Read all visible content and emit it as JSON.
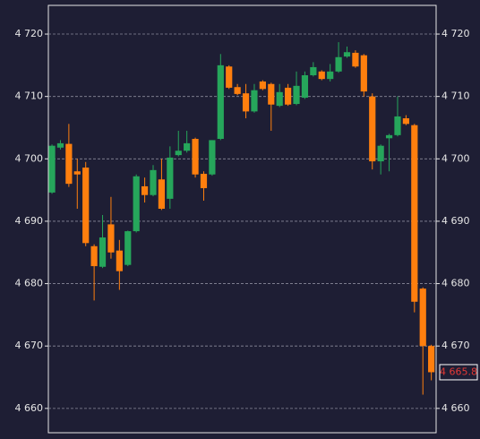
{
  "chart_data": {
    "type": "candlestick",
    "up_color": "#26a65b",
    "down_color": "#ff7f0e",
    "grid": true,
    "ylim": [
      4656.1,
      4724.6
    ],
    "yticks": [
      {
        "value": 4660,
        "label": "4 660"
      },
      {
        "value": 4670,
        "label": "4 670"
      },
      {
        "value": 4680,
        "label": "4 680"
      },
      {
        "value": 4690,
        "label": "4 690"
      },
      {
        "value": 4700,
        "label": "4 700"
      },
      {
        "value": 4710,
        "label": "4 710"
      },
      {
        "value": 4720,
        "label": "4 720"
      }
    ],
    "last_price": {
      "value": 4665.8,
      "label": "4 665.8"
    },
    "open": [
      4694.6,
      4701.8,
      4702.4,
      4698,
      4698.6,
      4686,
      4682.7,
      4689.5,
      4685.3,
      4683,
      4688.4,
      4695.6,
      4694.2,
      4696.7,
      4693.6,
      4700.6,
      4701.3,
      4703.2,
      4697.6,
      4697.5,
      4703.2,
      4714.8,
      4711.5,
      4710.5,
      4707.6,
      4712.4,
      4712,
      4708.5,
      4711.4,
      4708.8,
      4709.8,
      4713.4,
      4714,
      4712.8,
      4714,
      4716.4,
      4717,
      4716.6,
      4710,
      4699.6,
      4703.3,
      4703.8,
      4706.5,
      4705.4,
      4679.2,
      4670
    ],
    "high": [
      4702.3,
      4703,
      4705.6,
      4700,
      4699.5,
      4686.3,
      4691,
      4693.9,
      4687,
      4688.5,
      4697.5,
      4697,
      4699,
      4700,
      4702,
      4704.5,
      4704.5,
      4703.4,
      4698,
      4703,
      4716.8,
      4715,
      4712,
      4712,
      4712,
      4712.6,
      4712.2,
      4712,
      4712,
      4714,
      4714,
      4715.5,
      4714.2,
      4715.2,
      4718.7,
      4718,
      4717.4,
      4716.8,
      4710.5,
      4702.3,
      4704,
      4710,
      4707,
      4705.6,
      4679.4,
      4670.2
    ],
    "low": [
      4694.4,
      4701.5,
      4695.5,
      4692,
      4686,
      4677.3,
      4682.5,
      4684,
      4679,
      4682.8,
      4688.2,
      4693,
      4694,
      4691.8,
      4692,
      4700.4,
      4701,
      4697,
      4693.3,
      4697.3,
      4703,
      4711.2,
      4710.2,
      4706.5,
      4707.4,
      4711,
      4704.5,
      4708.3,
      4708.5,
      4708.6,
      4709.6,
      4713.2,
      4712.6,
      4712.4,
      4713.8,
      4716.2,
      4714.6,
      4710,
      4698.3,
      4697.5,
      4698,
      4703.6,
      4705.4,
      4675.4,
      4662.2,
      4664.5
    ],
    "close": [
      4702.1,
      4702.5,
      4696,
      4697.5,
      4686.5,
      4682.8,
      4687.4,
      4685,
      4682,
      4688.4,
      4697.2,
      4694.2,
      4698.2,
      4692,
      4700.2,
      4701.3,
      4702.5,
      4697.5,
      4695.3,
      4703,
      4715,
      4711.4,
      4710.4,
      4707.6,
      4711,
      4711.2,
      4708.7,
      4710.7,
      4708.7,
      4711.7,
      4713.4,
      4714.7,
      4712.8,
      4714,
      4716.3,
      4717.1,
      4714.8,
      4710.8,
      4699.6,
      4702.1,
      4703.8,
      4706.8,
      4705.6,
      4677.1,
      4670,
      4665.8
    ]
  }
}
